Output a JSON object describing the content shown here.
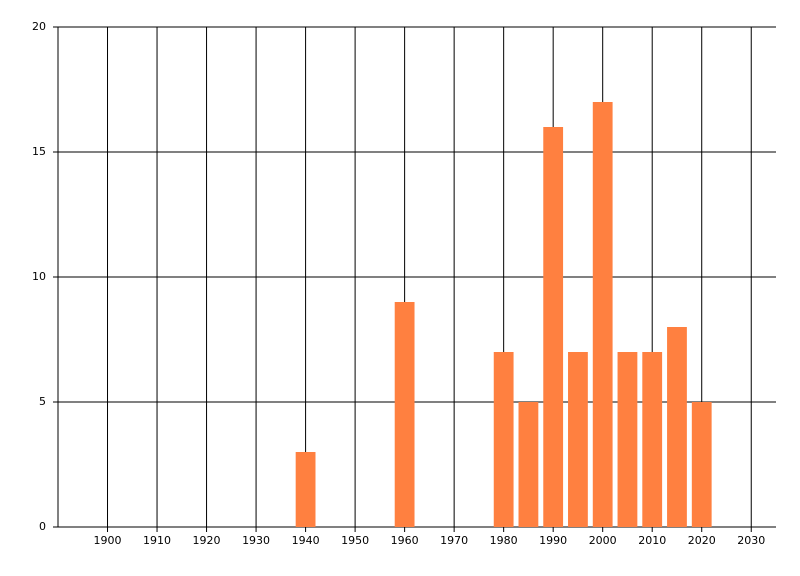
{
  "chart_data": {
    "type": "bar",
    "x": [
      1940,
      1960,
      1980,
      1985,
      1990,
      1995,
      2000,
      2005,
      2010,
      2015,
      2020
    ],
    "values": [
      3,
      9,
      7,
      5,
      16,
      7,
      17,
      7,
      7,
      8,
      5
    ],
    "color": "#ff8040",
    "xlim": [
      1890,
      2035
    ],
    "xticks": [
      1900,
      1910,
      1920,
      1930,
      1940,
      1950,
      1960,
      1970,
      1980,
      1990,
      2000,
      2010,
      2020,
      2030
    ],
    "ylim": [
      0,
      20
    ],
    "yticks": [
      0,
      5,
      10,
      15,
      20
    ],
    "grid": true
  }
}
